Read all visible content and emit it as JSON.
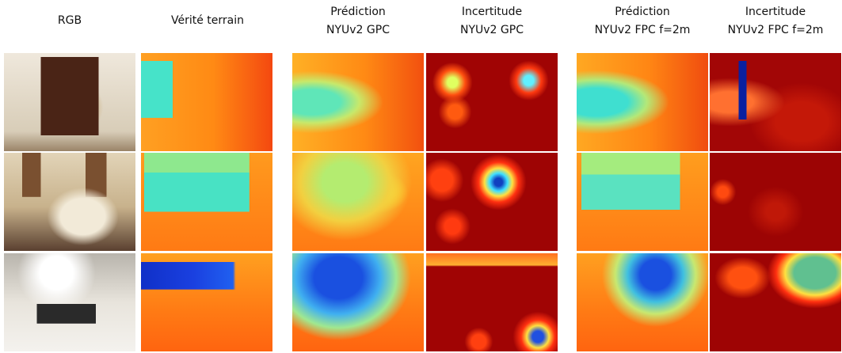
{
  "columns": [
    {
      "lines": [
        "RGB"
      ]
    },
    {
      "lines": [
        "Vérité terrain"
      ]
    },
    {
      "lines": [
        "Prédiction",
        "NYUv2 GPC"
      ]
    },
    {
      "lines": [
        "Incertitude",
        "NYUv2 GPC"
      ]
    },
    {
      "lines": [
        "Prédiction",
        "NYUv2 FPC f=2m"
      ]
    },
    {
      "lines": [
        "Incertitude",
        "NYUv2 FPC f=2m"
      ]
    }
  ]
}
